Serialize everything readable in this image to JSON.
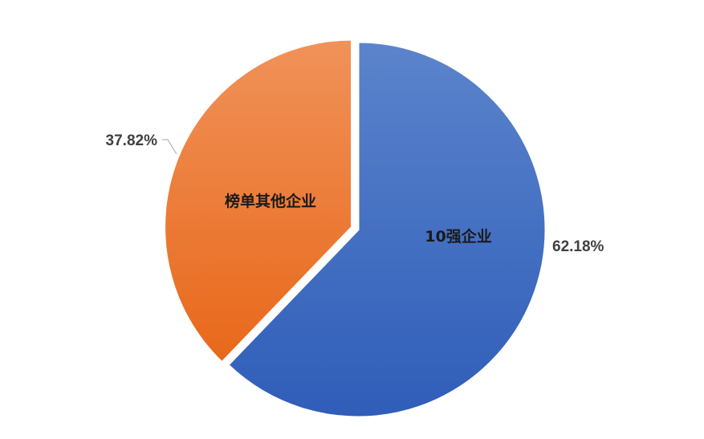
{
  "chart_data": {
    "type": "pie",
    "title": "",
    "start": "top",
    "direction": "clockwise",
    "slices": [
      {
        "label": "10强企业",
        "value": 62.18,
        "value_label": "62.18%",
        "color_top": "#5b84cc",
        "color_bottom": "#2f5db8",
        "exploded": false
      },
      {
        "label": "榜单其他企业",
        "value": 37.82,
        "value_label": "37.82%",
        "color_top": "#f0925a",
        "color_bottom": "#e8681a",
        "exploded": true
      }
    ],
    "legend": "none",
    "border_color": "#ffffff"
  }
}
